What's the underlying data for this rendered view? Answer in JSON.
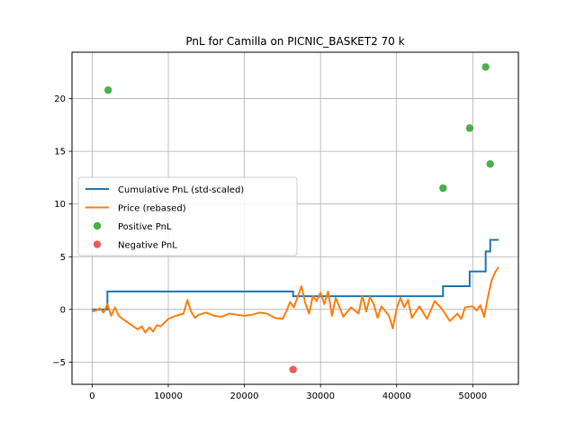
{
  "chart_data": {
    "type": "line",
    "title": "PnL for Camilla on PICNIC_BASKET2 70 k",
    "xlabel": "",
    "ylabel": "",
    "xlim": [
      -2650,
      56000
    ],
    "ylim": [
      -7.1,
      24.4
    ],
    "xticks": [
      0,
      10000,
      20000,
      30000,
      40000,
      50000
    ],
    "xtick_labels": [
      "0",
      "10000",
      "20000",
      "30000",
      "40000",
      "50000"
    ],
    "yticks": [
      -5,
      0,
      5,
      10,
      15,
      20
    ],
    "ytick_labels": [
      "−5",
      "0",
      "5",
      "10",
      "15",
      "20"
    ],
    "grid": true,
    "legend_position": "center-left",
    "series": [
      {
        "name": "Cumulative PnL (std-scaled)",
        "kind": "step",
        "color": "#1f77b4",
        "x": [
          0,
          2000,
          26400,
          46100,
          49600,
          51700,
          52300,
          53400
        ],
        "y": [
          0,
          1.7,
          1.25,
          2.2,
          3.6,
          5.5,
          6.6,
          6.6
        ]
      },
      {
        "name": "Price (rebased)",
        "kind": "line",
        "color": "#ff7f0e",
        "x": [
          0,
          500,
          1000,
          1500,
          2000,
          2500,
          3000,
          3500,
          4000,
          5000,
          6000,
          6500,
          7000,
          7500,
          8000,
          8500,
          9000,
          10000,
          11000,
          12000,
          12500,
          13000,
          13500,
          14000,
          15000,
          16000,
          17000,
          18000,
          19000,
          20000,
          21000,
          22000,
          23000,
          24000,
          25000,
          25500,
          26000,
          26500,
          27000,
          27500,
          28000,
          28500,
          29000,
          29500,
          30000,
          30500,
          31000,
          31500,
          32000,
          33000,
          34000,
          35000,
          35500,
          36000,
          36500,
          37000,
          37500,
          38000,
          39000,
          39500,
          40000,
          40500,
          41000,
          41500,
          42000,
          43000,
          44000,
          45000,
          46000,
          47000,
          48000,
          48500,
          49000,
          50000,
          50500,
          51000,
          51500,
          52000,
          52500,
          53000,
          53400
        ],
        "y": [
          -0.2,
          -0.1,
          0.1,
          -0.3,
          0.5,
          -0.6,
          0.2,
          -0.6,
          -0.9,
          -1.4,
          -1.9,
          -1.6,
          -2.2,
          -1.7,
          -2.1,
          -1.5,
          -1.6,
          -0.9,
          -0.6,
          -0.4,
          0.9,
          -0.2,
          -0.8,
          -0.5,
          -0.3,
          -0.6,
          -0.7,
          -0.4,
          -0.5,
          -0.6,
          -0.5,
          -0.3,
          -0.4,
          -0.8,
          -0.9,
          -0.2,
          0.7,
          0.2,
          1.2,
          2.2,
          0.6,
          -0.4,
          1.3,
          0.8,
          1.6,
          0.5,
          1.7,
          -0.6,
          1.1,
          -0.7,
          0.2,
          -0.4,
          1.3,
          -0.2,
          1.2,
          0.5,
          -0.8,
          0.3,
          -0.6,
          -1.8,
          0.1,
          1.1,
          0.2,
          0.9,
          -0.8,
          0.3,
          -0.9,
          0.8,
          0.0,
          -1.1,
          -0.4,
          -0.9,
          0.2,
          0.3,
          -0.1,
          0.4,
          -0.7,
          1.2,
          2.8,
          3.6,
          4.0
        ]
      },
      {
        "name": "Positive PnL",
        "kind": "scatter",
        "color": "#2ca02c",
        "x": [
          2100,
          46100,
          49600,
          51700,
          52300
        ],
        "y": [
          20.8,
          11.5,
          17.2,
          23.0,
          13.8
        ]
      },
      {
        "name": "Negative PnL",
        "kind": "scatter",
        "color": "#e8413c",
        "x": [
          26400
        ],
        "y": [
          -5.7
        ]
      }
    ]
  }
}
